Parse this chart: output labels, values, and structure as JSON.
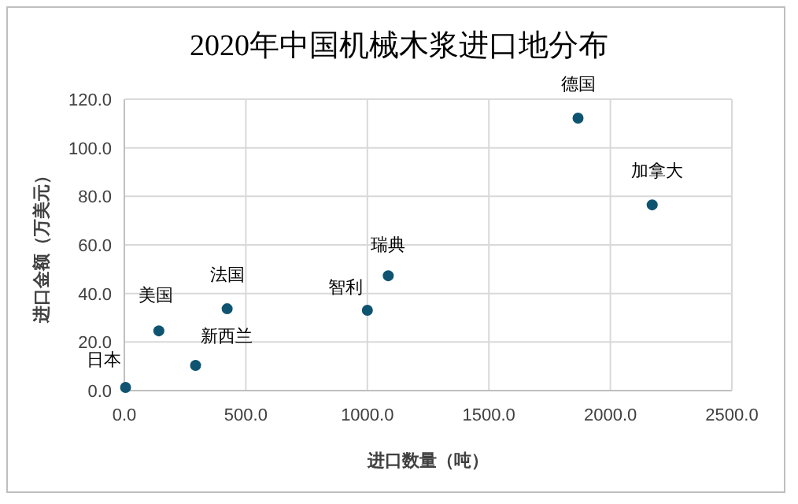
{
  "chart_data": {
    "type": "scatter",
    "title": "2020年中国机械木浆进口地分布",
    "xlabel": "进口数量（吨）",
    "ylabel": "进口金额（万美元）",
    "x": [
      5,
      142,
      293,
      423,
      1000,
      1086,
      1867,
      2172
    ],
    "series": [
      {
        "color": "#0e5470",
        "values": [
          1.3,
          24.6,
          10.4,
          33.7,
          33.1,
          47.3,
          112.2,
          76.5
        ]
      }
    ],
    "annotations": [
      {
        "text": "日本",
        "x": 5,
        "y": 1.3
      },
      {
        "text": "美国",
        "x": 142,
        "y": 24.6
      },
      {
        "text": "新西兰",
        "x": 293,
        "y": 10.4
      },
      {
        "text": "法国",
        "x": 423,
        "y": 33.7
      },
      {
        "text": "智利",
        "x": 1000,
        "y": 33.1
      },
      {
        "text": "瑞典",
        "x": 1086,
        "y": 47.3
      },
      {
        "text": "德国",
        "x": 1867,
        "y": 112.2
      },
      {
        "text": "加拿大",
        "x": 2172,
        "y": 76.5
      }
    ],
    "xlim": [
      0,
      2500
    ],
    "xticks": [
      {
        "value": 0,
        "label": "0.0"
      },
      {
        "value": 500,
        "label": "500.0"
      },
      {
        "value": 1000,
        "label": "1000.0"
      },
      {
        "value": 1500,
        "label": "1500.0"
      },
      {
        "value": 2000,
        "label": "2000.0"
      },
      {
        "value": 2500,
        "label": "2500.0"
      }
    ],
    "ylim": [
      0,
      120
    ],
    "yticks": [
      {
        "value": 0,
        "label": "0.0"
      },
      {
        "value": 20,
        "label": "20.0"
      },
      {
        "value": 40,
        "label": "40.0"
      },
      {
        "value": 60,
        "label": "60.0"
      },
      {
        "value": 80,
        "label": "80.0"
      },
      {
        "value": 100,
        "label": "100.0"
      },
      {
        "value": 120,
        "label": "120.0"
      }
    ],
    "grid": true,
    "marker": "circle"
  }
}
